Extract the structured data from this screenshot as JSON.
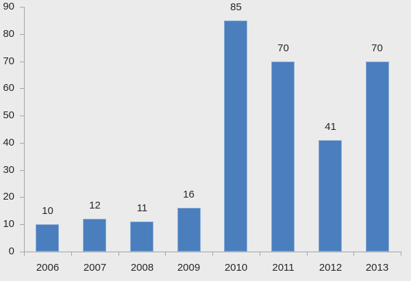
{
  "chart_data": {
    "type": "bar",
    "title": "",
    "xlabel": "",
    "ylabel": "",
    "categories": [
      "2006",
      "2007",
      "2008",
      "2009",
      "2010",
      "2011",
      "2012",
      "2013"
    ],
    "values": [
      10,
      12,
      11,
      16,
      85,
      70,
      41,
      70
    ],
    "data_labels": [
      "10",
      "12",
      "11",
      "16",
      "85",
      "70",
      "41",
      "70"
    ],
    "ylim": [
      0,
      90
    ],
    "ytick_interval": 10,
    "yticks": [
      "0",
      "10",
      "20",
      "30",
      "40",
      "50",
      "60",
      "70",
      "80",
      "90"
    ],
    "grid": false,
    "legend": null,
    "colors": {
      "bar_fill": "#4b7ebc",
      "bar_edge": "#8fb0da",
      "axis_line": "#a3a3a3",
      "background": "#ebebeb",
      "text": "#262626"
    }
  }
}
